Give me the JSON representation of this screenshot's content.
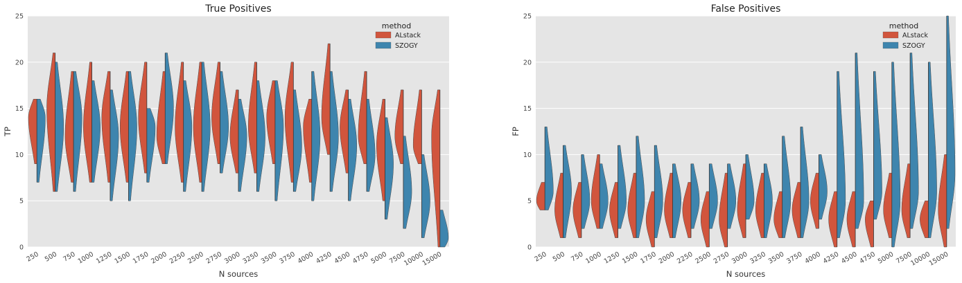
{
  "colors": {
    "alstack": "#d1553d",
    "szogy": "#3e85ae",
    "panel_bg": "#e5e5e5",
    "grid": "#ffffff"
  },
  "legend": {
    "title": "method",
    "entries": [
      "ALstack",
      "SZOGY"
    ],
    "position": "top-right"
  },
  "chart_data": [
    {
      "type": "violin",
      "title": "True Positives",
      "xlabel": "N sources",
      "ylabel": "TP",
      "ylim": [
        0,
        25
      ],
      "yticks": [
        0,
        5,
        10,
        15,
        20,
        25
      ],
      "grid": true,
      "split": true,
      "categories": [
        "250",
        "500",
        "750",
        "1000",
        "1250",
        "1500",
        "1750",
        "2000",
        "2250",
        "2500",
        "2750",
        "3000",
        "3250",
        "3500",
        "3750",
        "4000",
        "4250",
        "4500",
        "4750",
        "5000",
        "7500",
        "10000",
        "15000"
      ],
      "series": [
        {
          "name": "ALstack",
          "min": [
            9,
            6,
            7,
            7,
            7,
            7,
            8,
            9,
            7,
            7,
            9,
            8,
            8,
            9,
            7,
            7,
            10,
            8,
            9,
            5,
            9,
            9,
            0
          ],
          "max": [
            16,
            21,
            19,
            20,
            19,
            19,
            20,
            19,
            20,
            20,
            20,
            17,
            20,
            18,
            20,
            16,
            22,
            17,
            19,
            16,
            17,
            17,
            17
          ],
          "center": [
            14,
            15,
            12,
            13,
            14,
            13,
            14,
            12,
            13,
            13,
            14,
            12,
            13,
            14,
            14,
            13,
            14,
            13,
            12,
            11,
            12,
            11,
            12
          ]
        },
        {
          "name": "SZOGY",
          "min": [
            7,
            6,
            6,
            7,
            5,
            5,
            7,
            9,
            6,
            6,
            8,
            6,
            6,
            5,
            6,
            5,
            6,
            5,
            6,
            3,
            2,
            1,
            0
          ],
          "max": [
            16,
            20,
            19,
            18,
            17,
            19,
            15,
            21,
            18,
            20,
            19,
            16,
            18,
            18,
            17,
            19,
            19,
            16,
            16,
            14,
            12,
            10,
            4
          ],
          "center": [
            14,
            13,
            14,
            13,
            12,
            13,
            13,
            15,
            13,
            13,
            13,
            12,
            12,
            13,
            11,
            12,
            12,
            11,
            10,
            9,
            6,
            5,
            1
          ]
        }
      ]
    },
    {
      "type": "violin",
      "title": "False Positives",
      "xlabel": "N sources",
      "ylabel": "FP",
      "ylim": [
        0,
        25
      ],
      "yticks": [
        0,
        5,
        10,
        15,
        20,
        25
      ],
      "grid": true,
      "split": true,
      "categories": [
        "250",
        "500",
        "750",
        "1000",
        "1250",
        "1500",
        "1750",
        "2000",
        "2250",
        "2500",
        "2750",
        "3000",
        "3250",
        "3500",
        "3750",
        "4000",
        "4250",
        "4500",
        "4750",
        "5000",
        "7500",
        "10000",
        "15000"
      ],
      "series": [
        {
          "name": "ALstack",
          "min": [
            4,
            1,
            1,
            2,
            1,
            1,
            0,
            1,
            1,
            0,
            0,
            1,
            1,
            1,
            1,
            2,
            0,
            0,
            0,
            1,
            1,
            1,
            0
          ],
          "max": [
            7,
            8,
            7,
            10,
            7,
            8,
            6,
            8,
            7,
            6,
            8,
            9,
            8,
            6,
            7,
            8,
            6,
            6,
            5,
            8,
            9,
            5,
            10
          ],
          "center": [
            5,
            4,
            4,
            5,
            4,
            4,
            3,
            4,
            4,
            3,
            3,
            4,
            4,
            3,
            4,
            5,
            3,
            3,
            3,
            4,
            4,
            3,
            4
          ]
        },
        {
          "name": "SZOGY",
          "min": [
            4,
            1,
            2,
            2,
            2,
            1,
            1,
            1,
            2,
            2,
            2,
            3,
            1,
            1,
            1,
            3,
            1,
            2,
            3,
            0,
            2,
            1,
            2
          ],
          "max": [
            13,
            11,
            10,
            9,
            11,
            12,
            11,
            9,
            9,
            9,
            9,
            10,
            9,
            12,
            13,
            10,
            19,
            21,
            19,
            20,
            21,
            20,
            25
          ],
          "center": [
            6,
            6,
            5,
            5,
            5,
            5,
            5,
            5,
            5,
            5,
            5,
            5,
            5,
            5,
            5,
            6,
            5,
            5,
            6,
            5,
            6,
            6,
            8
          ]
        }
      ]
    }
  ]
}
